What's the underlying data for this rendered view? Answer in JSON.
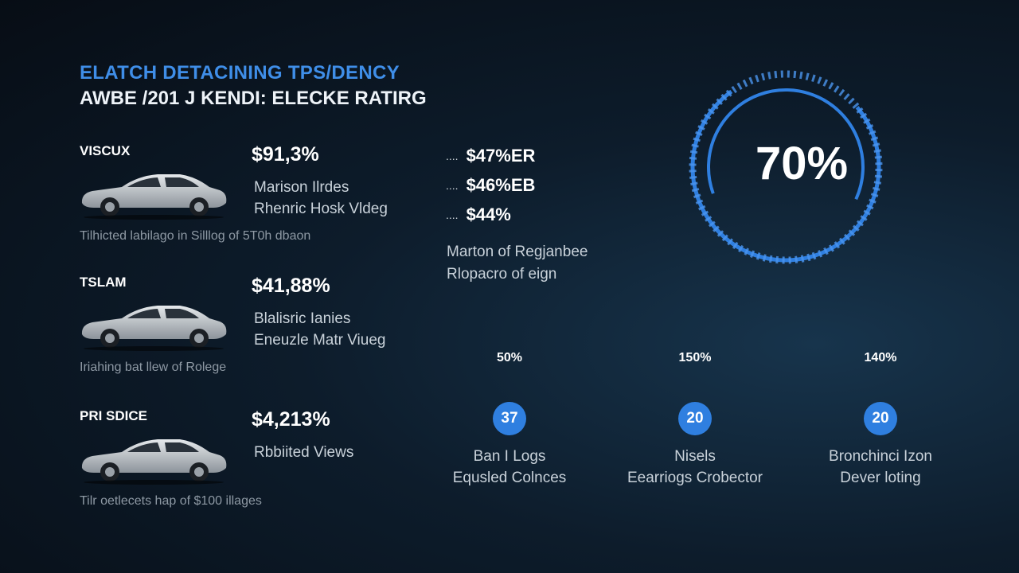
{
  "header": {
    "title": "ELATCH DETACINING TPS/DENCY",
    "subtitle": "AWBE /201 J KENDI: ELECKE RATIRG"
  },
  "cars": [
    {
      "name": "VISCUX",
      "price": "$91,3%",
      "lines": [
        "Marison Ilrdes",
        "Rhenric Hosk Vldeg"
      ],
      "caption": "Tilhicted labilago in Silllog of 5T0h dbaon"
    },
    {
      "name": "TSLAM",
      "price": "$41,88%",
      "lines": [
        "Blalisric Ianies",
        "Eneuzle Matr Viueg"
      ],
      "caption": "Iriahing bat llew of Rolege"
    },
    {
      "name": "PRI SDICE",
      "price": "$4,213%",
      "lines": [
        "Rbbiited Views"
      ],
      "caption": "Tilr oetlecets hap of $100 illages"
    }
  ],
  "middle": {
    "items": [
      "$47%ER",
      "$46%EB",
      "$44%"
    ],
    "description": [
      "Marton of Regjanbee",
      "Rlopacro of eign"
    ]
  },
  "gauge": {
    "value": "70%"
  },
  "stats": [
    {
      "percent": "50%",
      "badge": "37",
      "lines": [
        "Ban I Logs",
        "Equsled Colnces"
      ]
    },
    {
      "percent": "150%",
      "badge": "20",
      "lines": [
        "Nisels",
        "Eearriogs Crobector"
      ]
    },
    {
      "percent": "140%",
      "badge": "20",
      "lines": [
        "Bronchinci Izon",
        "Dever loting"
      ]
    }
  ]
}
